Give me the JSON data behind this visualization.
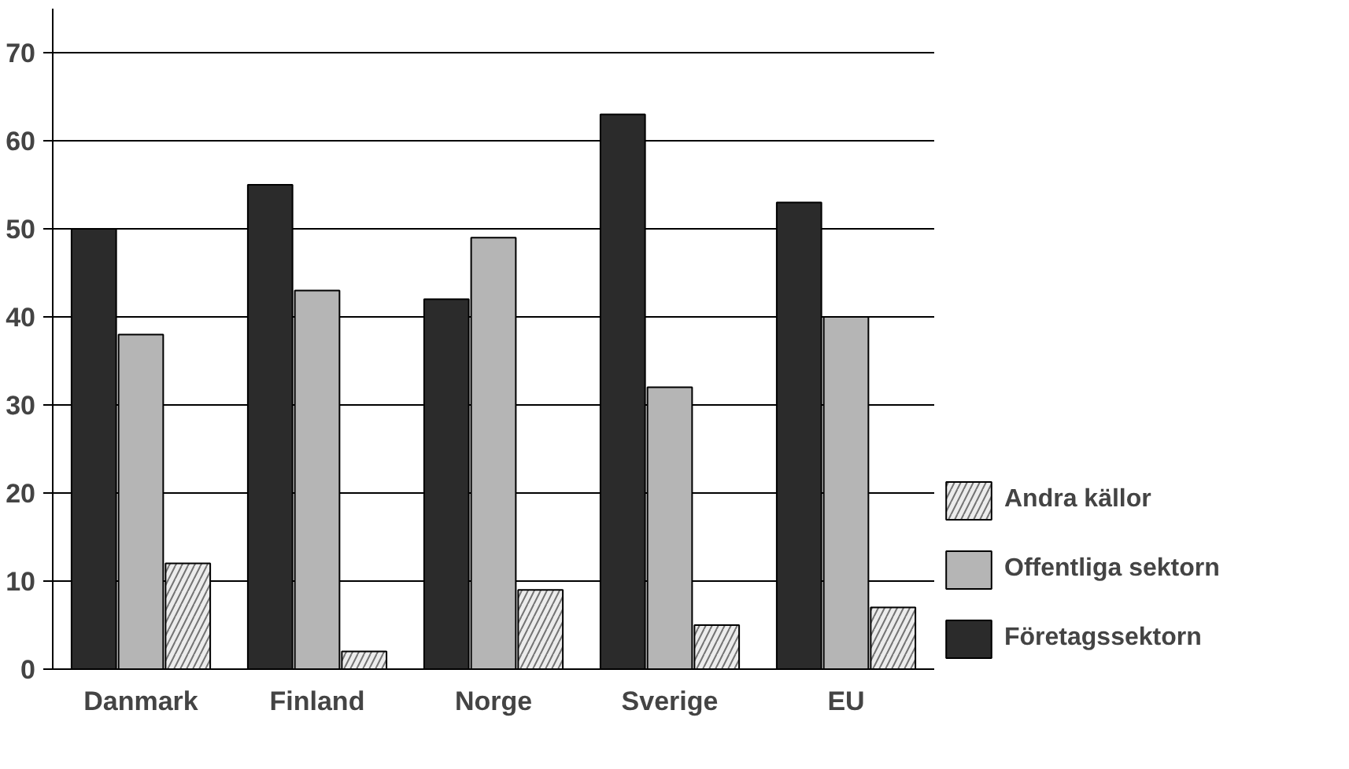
{
  "chart_data": {
    "type": "bar",
    "categories": [
      "Danmark",
      "Finland",
      "Norge",
      "Sverige",
      "EU"
    ],
    "series": [
      {
        "name": "Företagssektorn",
        "color": "#2b2b2b",
        "values": [
          50,
          55,
          42,
          63,
          53
        ]
      },
      {
        "name": "Offentliga sektorn",
        "color": "#b5b5b5",
        "values": [
          38,
          43,
          49,
          32,
          40
        ]
      },
      {
        "name": "Andra källor",
        "color": "#ececec",
        "values": [
          12,
          2,
          9,
          5,
          7
        ]
      }
    ],
    "ylim": [
      0,
      75
    ],
    "yticks": [
      0,
      10,
      20,
      30,
      40,
      50,
      60,
      70
    ],
    "grid": "y",
    "legend": "right"
  }
}
